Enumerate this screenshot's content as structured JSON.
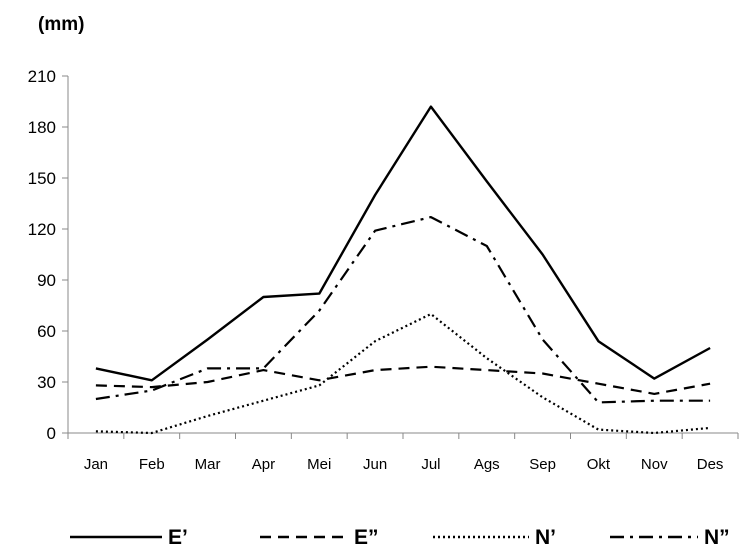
{
  "chart_data": {
    "type": "line",
    "ylabel": "(mm)",
    "xlabel": "",
    "ylim": [
      0,
      210
    ],
    "yticks": [
      0,
      30,
      60,
      90,
      120,
      150,
      180,
      210
    ],
    "grid": false,
    "legend_position": "bottom",
    "categories": [
      "Jan",
      "Feb",
      "Mar",
      "Apr",
      "Mei",
      "Jun",
      "Jul",
      "Ags",
      "Sep",
      "Okt",
      "Nov",
      "Des"
    ],
    "series": [
      {
        "name": "E’",
        "style": "solid",
        "color": "#000000",
        "values": [
          38,
          31,
          55,
          80,
          82,
          140,
          192,
          148,
          105,
          54,
          32,
          50
        ]
      },
      {
        "name": "E”",
        "style": "dashed",
        "color": "#000000",
        "values": [
          28,
          27,
          30,
          37,
          31,
          37,
          39,
          37,
          35,
          29,
          23,
          29
        ]
      },
      {
        "name": "N’",
        "style": "dotted",
        "color": "#000000",
        "values": [
          1,
          0,
          10,
          19,
          28,
          54,
          70,
          44,
          21,
          2,
          0,
          3
        ]
      },
      {
        "name": "N”",
        "style": "dashdot",
        "color": "#000000",
        "values": [
          20,
          25,
          38,
          38,
          72,
          119,
          127,
          110,
          55,
          18,
          19,
          19
        ]
      }
    ]
  }
}
